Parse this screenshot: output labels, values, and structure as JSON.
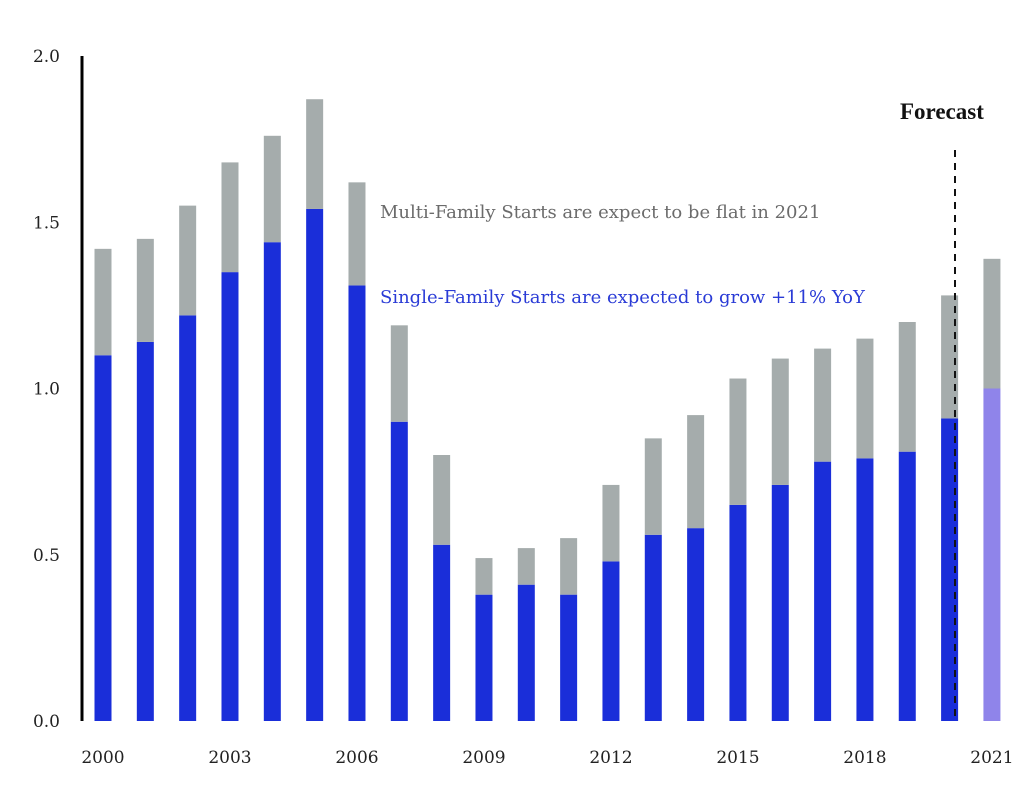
{
  "colors": {
    "single_family": "#1a2ed9",
    "single_family_forecast": "#8f84ea",
    "multi_family": "#a5acac",
    "axis": "#000000",
    "annotation_multi": "#6b6b6b",
    "annotation_single": "#2a3bd6"
  },
  "chart_data": {
    "type": "bar",
    "stacked": true,
    "categories": [
      "2000",
      "2001",
      "2002",
      "2003",
      "2004",
      "2005",
      "2006",
      "2007",
      "2008",
      "2009",
      "2010",
      "2011",
      "2012",
      "2013",
      "2014",
      "2015",
      "2016",
      "2017",
      "2018",
      "2019",
      "2020",
      "2021"
    ],
    "x_tick_labels": [
      "2000",
      "2003",
      "2006",
      "2009",
      "2012",
      "2015",
      "2018",
      "2021"
    ],
    "y_tick_labels": [
      "0.0",
      "0.5",
      "1.0",
      "1.5",
      "2.0"
    ],
    "ylim": [
      0,
      2.0
    ],
    "series": [
      {
        "values": [
          1.1,
          1.14,
          1.22,
          1.35,
          1.44,
          1.54,
          1.31,
          0.9,
          0.53,
          0.38,
          0.41,
          0.38,
          0.48,
          0.56,
          0.58,
          0.65,
          0.71,
          0.78,
          0.79,
          0.81,
          0.91,
          1.0
        ]
      },
      {
        "values": [
          0.32,
          0.31,
          0.33,
          0.33,
          0.32,
          0.33,
          0.31,
          0.29,
          0.27,
          0.11,
          0.11,
          0.17,
          0.23,
          0.29,
          0.34,
          0.38,
          0.38,
          0.34,
          0.36,
          0.39,
          0.37,
          0.39
        ]
      }
    ],
    "forecast_from": "2021",
    "annotations": {
      "forecast_label": "Forecast",
      "multi_family_note": "Multi-Family Starts are expect to be flat in 2021",
      "single_family_note": "Single-Family Starts are expected to grow +11% YoY"
    }
  }
}
